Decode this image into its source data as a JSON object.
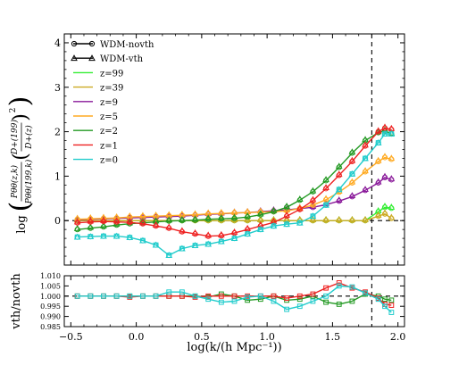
{
  "chart_data": [
    {
      "type": "line",
      "panel": "main",
      "xlabel": "log(k/(h Mpc⁻¹))",
      "ylabel": "log( P_θθ(z,k) / P_θθ(199,k) · (D+(199)/D+(z))² )",
      "ylabel_parts": {
        "prefix": "log",
        "num": "P",
        "num_sub": "θθ",
        "num_args": "(z,k)",
        "den": "P",
        "den_sub": "θθ",
        "den_args": "(199,k)",
        "dnum": "D",
        "dnum_sub": "+",
        "dnum_args": "(199)",
        "dden": "D",
        "dden_sub": "+",
        "dden_args": "(z)",
        "exp": "2"
      },
      "xlim": [
        -0.55,
        2.05
      ],
      "ylim": [
        -1.0,
        4.2
      ],
      "xticks": [
        -0.5,
        0.0,
        0.5,
        1.0,
        1.5,
        2.0
      ],
      "xtick_labels": [
        "−0.5",
        "0.0",
        "0.5",
        "1.0",
        "1.5",
        "2.0"
      ],
      "yticks": [
        0,
        1,
        2,
        3,
        4
      ],
      "ytick_labels": [
        "0",
        "1",
        "2",
        "3",
        "4"
      ],
      "hline": 0,
      "vline": 1.8,
      "legend": {
        "placement": "top-left",
        "entries": [
          {
            "label": "WDM-novth",
            "color": "#000000",
            "marker": "circle"
          },
          {
            "label": "WDM-vth",
            "color": "#000000",
            "marker": "triangle"
          },
          {
            "label": "z=99",
            "color": "#33ee33",
            "marker": "none"
          },
          {
            "label": "z=39",
            "color": "#ccaa22",
            "marker": "none"
          },
          {
            "label": "z=9",
            "color": "#8a1a9a",
            "marker": "none"
          },
          {
            "label": "z=5",
            "color": "#ffaa22",
            "marker": "none"
          },
          {
            "label": "z=2",
            "color": "#229922",
            "marker": "none"
          },
          {
            "label": "z=1",
            "color": "#ee2222",
            "marker": "none"
          },
          {
            "label": "z=0",
            "color": "#22cccc",
            "marker": "none"
          }
        ]
      },
      "x": [
        -0.45,
        -0.35,
        -0.25,
        -0.15,
        -0.05,
        0.05,
        0.15,
        0.25,
        0.35,
        0.45,
        0.55,
        0.65,
        0.75,
        0.85,
        0.95,
        1.05,
        1.15,
        1.25,
        1.35,
        1.45,
        1.55,
        1.65,
        1.75,
        1.85,
        1.9,
        1.95
      ],
      "series": [
        {
          "name": "z=99",
          "color": "#33ee33",
          "values": [
            0,
            0,
            0,
            0,
            0,
            0,
            0,
            0,
            0,
            0,
            0,
            0,
            0,
            0,
            0,
            0,
            0,
            0,
            0,
            0,
            0,
            0,
            0,
            0.2,
            0.3,
            0.28
          ]
        },
        {
          "name": "z=39",
          "color": "#ccaa22",
          "values": [
            0,
            0,
            0,
            0,
            0,
            0,
            0,
            0,
            0,
            0,
            0,
            0,
            0,
            0,
            0,
            0,
            0,
            0,
            0,
            0,
            0,
            0,
            0,
            0.1,
            0.15,
            0.05
          ]
        },
        {
          "name": "z=9",
          "color": "#8a1a9a",
          "values": [
            0.02,
            0.03,
            0.04,
            0.05,
            0.06,
            0.07,
            0.08,
            0.09,
            0.1,
            0.12,
            0.14,
            0.15,
            0.17,
            0.18,
            0.2,
            0.22,
            0.24,
            0.27,
            0.3,
            0.36,
            0.44,
            0.54,
            0.68,
            0.85,
            0.97,
            0.92
          ]
        },
        {
          "name": "z=5",
          "color": "#ffaa22",
          "values": [
            0.03,
            0.04,
            0.05,
            0.06,
            0.08,
            0.09,
            0.1,
            0.11,
            0.12,
            0.13,
            0.15,
            0.16,
            0.17,
            0.18,
            0.19,
            0.2,
            0.22,
            0.27,
            0.35,
            0.47,
            0.64,
            0.85,
            1.1,
            1.33,
            1.42,
            1.38
          ]
        },
        {
          "name": "z=2",
          "color": "#229922",
          "values": [
            -0.2,
            -0.17,
            -0.14,
            -0.1,
            -0.07,
            -0.05,
            -0.03,
            -0.01,
            0,
            0.01,
            0.03,
            0.04,
            0.05,
            0.08,
            0.13,
            0.2,
            0.3,
            0.46,
            0.65,
            0.9,
            1.2,
            1.52,
            1.8,
            1.98,
            2.02,
            1.95
          ]
        },
        {
          "name": "z=1",
          "color": "#ee2222",
          "values": [
            -0.05,
            -0.03,
            -0.02,
            -0.03,
            -0.04,
            -0.07,
            -0.12,
            -0.17,
            -0.25,
            -0.3,
            -0.35,
            -0.34,
            -0.28,
            -0.2,
            -0.12,
            -0.04,
            0.1,
            0.25,
            0.45,
            0.72,
            1.02,
            1.33,
            1.68,
            2.0,
            2.08,
            2.05
          ]
        },
        {
          "name": "z=0",
          "color": "#22cccc",
          "values": [
            -0.37,
            -0.36,
            -0.35,
            -0.35,
            -0.38,
            -0.45,
            -0.55,
            -0.78,
            -0.63,
            -0.56,
            -0.53,
            -0.47,
            -0.4,
            -0.3,
            -0.2,
            -0.12,
            -0.08,
            -0.05,
            0.1,
            0.35,
            0.7,
            1.05,
            1.4,
            1.75,
            1.95,
            1.95
          ]
        }
      ]
    },
    {
      "type": "line",
      "panel": "ratio",
      "xlabel": "log(k/(h Mpc⁻¹))",
      "ylabel": "vth/novth",
      "xlim": [
        -0.55,
        2.05
      ],
      "ylim": [
        0.985,
        1.01
      ],
      "yticks": [
        0.985,
        0.99,
        0.995,
        1.0,
        1.005,
        1.01
      ],
      "ytick_labels": [
        "0.985",
        "0.990",
        "0.995",
        "1.000",
        "1.005",
        "1.010"
      ],
      "hline": 1.0,
      "vline": 1.8,
      "x": [
        -0.45,
        -0.35,
        -0.25,
        -0.15,
        -0.05,
        0.05,
        0.15,
        0.25,
        0.35,
        0.45,
        0.55,
        0.65,
        0.75,
        0.85,
        0.95,
        1.05,
        1.15,
        1.25,
        1.35,
        1.45,
        1.55,
        1.65,
        1.75,
        1.85,
        1.9,
        1.95
      ],
      "series": [
        {
          "name": "z=2",
          "color": "#229922",
          "values": [
            1.0,
            1.0,
            1.0,
            1.0,
            1.0,
            1.0,
            1.0,
            1.0,
            1.0,
            1.0,
            0.9995,
            1.001,
            1.0,
            0.998,
            0.9985,
            1.0,
            0.998,
            0.9985,
            1.0,
            0.997,
            0.996,
            0.9975,
            1.001,
            1.0,
            0.9985,
            0.998
          ]
        },
        {
          "name": "z=1",
          "color": "#ee2222",
          "values": [
            1.0,
            1.0,
            1.0,
            1.0,
            0.9995,
            1.0,
            1.0,
            1.0,
            1.0,
            0.9995,
            1.0,
            1.0,
            1.0,
            1.0,
            1.0,
            1.0,
            0.999,
            1.0,
            1.001,
            1.004,
            1.0065,
            1.004,
            1.002,
            0.999,
            0.996,
            0.9955
          ]
        },
        {
          "name": "z=0",
          "color": "#22cccc",
          "values": [
            1.0,
            1.0,
            1.0,
            1.0,
            1.0,
            1.0,
            1.0,
            1.002,
            1.002,
            1.0,
            0.9985,
            0.997,
            0.9975,
            0.9995,
            1.0,
            0.9975,
            0.9935,
            0.995,
            0.9975,
            1.0,
            1.005,
            1.0045,
            1.0015,
            0.9985,
            0.995,
            0.992
          ]
        }
      ]
    }
  ]
}
